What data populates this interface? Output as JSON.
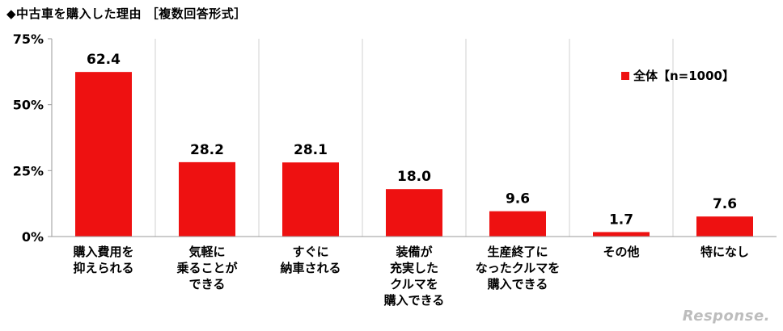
{
  "chart_data": {
    "type": "bar",
    "title": "◆中古車を購入した理由 ［複数回答形式］",
    "categories": [
      "購入費用を\n抑えられる",
      "気軽に\n乗ることが\nできる",
      "すぐに\n納車される",
      "装備が\n充実した\nクルマを\n購入できる",
      "生産終了に\nなったクルマを\n購入できる",
      "その他",
      "特になし"
    ],
    "series": [
      {
        "name": "全体【n=1000】",
        "values": [
          62.4,
          28.2,
          28.1,
          18.0,
          9.6,
          1.7,
          7.6
        ]
      }
    ],
    "value_labels": [
      "62.4",
      "28.2",
      "28.1",
      "18.0",
      "9.6",
      "1.7",
      "7.6"
    ],
    "y_ticks": [
      "0%",
      "25%",
      "50%",
      "75%"
    ],
    "y_tick_values": [
      0,
      25,
      50,
      75
    ],
    "ylim": [
      0,
      75
    ],
    "xlabel": "",
    "ylabel": "",
    "legend_position": "top-right",
    "grid": "vertical-category-separators",
    "colors": {
      "bar": "#ee1111",
      "axis": "#999999",
      "grid": "#d0d0d0"
    }
  },
  "watermark": "Response."
}
